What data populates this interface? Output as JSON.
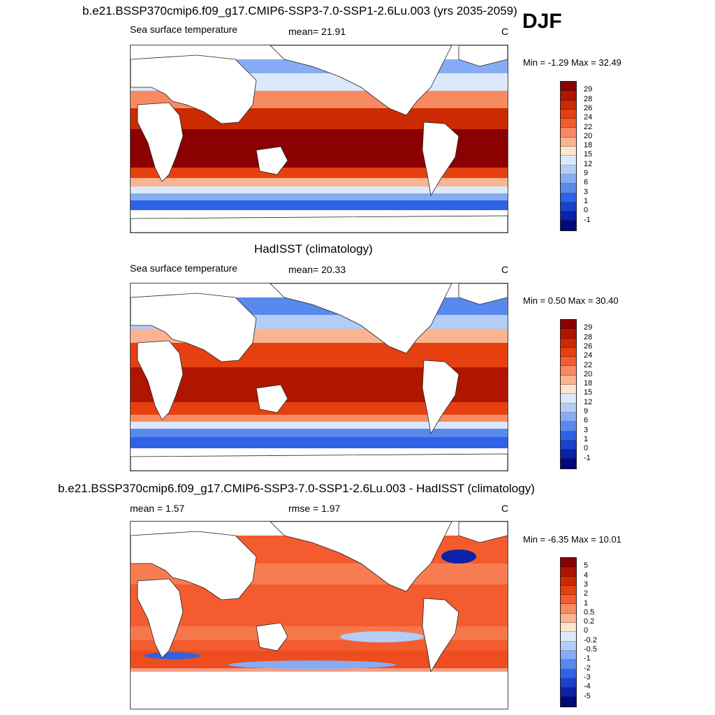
{
  "season": "DJF",
  "panels": [
    {
      "title": "b.e21.BSSP370cmip6.f09_g17.CMIP6-SSP3-7.0-SSP1-2.6Lu.003 (yrs 2035-2059)",
      "left_label": "Sea surface temperature",
      "center_label": "mean=  21.91",
      "units": "C",
      "minmax": "Min =  -1.29 Max =  32.49",
      "levels": [
        "29",
        "28",
        "26",
        "24",
        "22",
        "20",
        "18",
        "15",
        "12",
        "9",
        "6",
        "3",
        "1",
        "0",
        "-1"
      ],
      "colors": [
        "#8b0000",
        "#b01500",
        "#cc2a00",
        "#e64010",
        "#f45b2e",
        "#f88a62",
        "#fbb491",
        "#fde4d0",
        "#dbe9fb",
        "#b3cdf7",
        "#86acf4",
        "#5a89ee",
        "#2f62e6",
        "#1a41cc",
        "#0b22a8",
        "#020a7a"
      ]
    },
    {
      "title": "HadISST (climatology)",
      "left_label": "Sea surface temperature",
      "center_label": "mean=  20.33",
      "units": "C",
      "minmax": "Min =   0.50 Max =  30.40",
      "levels": [
        "29",
        "28",
        "26",
        "24",
        "22",
        "20",
        "18",
        "15",
        "12",
        "9",
        "6",
        "3",
        "1",
        "0",
        "-1"
      ],
      "colors": [
        "#8b0000",
        "#b01500",
        "#cc2a00",
        "#e64010",
        "#f45b2e",
        "#f88a62",
        "#fbb491",
        "#fde4d0",
        "#dbe9fb",
        "#b3cdf7",
        "#86acf4",
        "#5a89ee",
        "#2f62e6",
        "#1a41cc",
        "#0b22a8",
        "#020a7a"
      ]
    },
    {
      "title": "b.e21.BSSP370cmip6.f09_g17.CMIP6-SSP3-7.0-SSP1-2.6Lu.003 - HadISST (climatology)",
      "left_label": "mean =   1.57",
      "center_label": "rmse =   1.97",
      "units": "C",
      "minmax": "Min =  -6.35 Max =  10.01",
      "levels": [
        "5",
        "4",
        "3",
        "2",
        "1",
        "0.5",
        "0.2",
        "0",
        "-0.2",
        "-0.5",
        "-1",
        "-2",
        "-3",
        "-4",
        "-5"
      ],
      "colors": [
        "#8b0000",
        "#b01500",
        "#cc2a00",
        "#e64010",
        "#f45b2e",
        "#f88a62",
        "#fbb491",
        "#fde4d0",
        "#dbe9fb",
        "#b3cdf7",
        "#86acf4",
        "#5a89ee",
        "#2f62e6",
        "#1a41cc",
        "#0b22a8",
        "#020a7a"
      ]
    }
  ]
}
